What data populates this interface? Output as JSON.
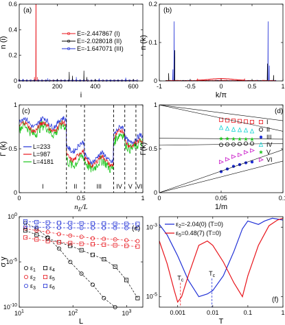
{
  "colors": {
    "red": "#e8141b",
    "black": "#000000",
    "blue": "#1f2fd6",
    "green": "#18c418",
    "cyan": "#12d2d2",
    "magenta": "#c817c8"
  },
  "chart_data": [
    {
      "panel": "(a)",
      "type": "line",
      "xlabel": "i",
      "ylabel": "n (i)",
      "xlim": [
        0,
        650
      ],
      "ylim": [
        0,
        0.6
      ],
      "xticks": [
        0,
        200,
        400,
        600
      ],
      "yticks": [
        0,
        0.2,
        0.4,
        0.6
      ],
      "legend": [
        "E=-2.447867 (I)",
        "E=-2.028018 (II)",
        "E=-1.647071 (III)"
      ],
      "series": [
        {
          "name": "E=-2.447867 (I)",
          "color": "red",
          "peaks": [
            [
              88,
              0.62
            ],
            [
              80,
              0.03
            ],
            [
              96,
              0.03
            ]
          ]
        },
        {
          "name": "E=-2.028018 (II)",
          "color": "black",
          "peaks": [
            [
              263,
              0.07
            ],
            [
              280,
              0.04
            ],
            [
              340,
              0.08
            ],
            [
              355,
              0.03
            ]
          ]
        },
        {
          "name": "E=-1.647071 (III)",
          "color": "blue",
          "peaks": [
            [
              20,
              0.015
            ],
            [
              150,
              0.02
            ],
            [
              300,
              0.03
            ],
            [
              420,
              0.02
            ],
            [
              560,
              0.025
            ]
          ]
        }
      ]
    },
    {
      "panel": "(b)",
      "type": "line",
      "xlabel": "k/π",
      "ylabel": "n (k)",
      "xlim": [
        -1,
        1
      ],
      "ylim": [
        0,
        0.2
      ],
      "xticks": [
        -1,
        -0.5,
        0,
        0.5,
        1
      ],
      "xticklabels": [
        "-1",
        "-0.5",
        "0",
        "0.5",
        "1"
      ],
      "yticks": [
        0,
        0.1,
        0.2
      ],
      "series": [
        {
          "color": "blue",
          "peaks": [
            [
              -0.76,
              0.155
            ],
            [
              0.76,
              0.155
            ],
            [
              -0.78,
              0.03
            ],
            [
              0.78,
              0.04
            ]
          ]
        },
        {
          "color": "black",
          "peaks": [
            [
              -0.75,
              0.08
            ],
            [
              0.75,
              0.045
            ],
            [
              -0.85,
              0.02
            ],
            [
              0.85,
              0.015
            ]
          ]
        },
        {
          "color": "red",
          "peaks": [
            [
              -0.38,
              0.006
            ],
            [
              0.38,
              0.006
            ],
            [
              0,
              0.004
            ]
          ]
        }
      ]
    },
    {
      "panel": "(c)",
      "type": "line",
      "xlabel": "n_E/L",
      "ylabel": "Γ (k)",
      "xlim": [
        0,
        1
      ],
      "ylim": [
        0,
        1
      ],
      "xticks": [
        0,
        0.5,
        1
      ],
      "yticks": [
        0,
        0.5,
        1
      ],
      "legend": [
        "L=233",
        "L=987",
        "L=4181"
      ],
      "dividers": [
        0.382,
        0.528,
        0.764,
        0.854,
        0.944
      ],
      "regions": [
        "I",
        "II",
        "III",
        "IV",
        "V",
        "VI"
      ],
      "series": [
        {
          "name": "L=233",
          "color": "blue",
          "segments": [
            [
              0,
              0.382,
              0.8
            ],
            [
              0.382,
              0.528,
              0.52
            ],
            [
              0.528,
              0.764,
              0.4
            ],
            [
              0.764,
              0.854,
              0.7
            ],
            [
              0.854,
              0.944,
              0.62
            ],
            [
              0.944,
              1,
              0.6
            ]
          ]
        },
        {
          "name": "L=987",
          "color": "red",
          "segments": [
            [
              0,
              0.382,
              0.75
            ],
            [
              0.382,
              0.528,
              0.42
            ],
            [
              0.528,
              0.764,
              0.36
            ],
            [
              0.764,
              0.854,
              0.66
            ],
            [
              0.854,
              0.944,
              0.58
            ],
            [
              0.944,
              1,
              0.55
            ]
          ]
        },
        {
          "name": "L=4181",
          "color": "green",
          "segments": [
            [
              0,
              0.382,
              0.72
            ],
            [
              0.382,
              0.528,
              0.36
            ],
            [
              0.528,
              0.764,
              0.32
            ],
            [
              0.764,
              0.854,
              0.62
            ],
            [
              0.854,
              0.944,
              0.55
            ],
            [
              0.944,
              1,
              0.52
            ]
          ]
        }
      ]
    },
    {
      "panel": "(d)",
      "type": "scatter",
      "xlabel": "1/m",
      "ylabel": "Γ(k)",
      "xlim": [
        0,
        0.1
      ],
      "ylim": [
        0,
        1
      ],
      "xticks": [
        0,
        0.05,
        0.1
      ],
      "yticks": [
        0,
        0.5,
        1
      ],
      "legend": [
        "I",
        "II",
        "III",
        "IV",
        "V",
        "VI"
      ],
      "series": [
        {
          "name": "I",
          "color": "red",
          "marker": "square",
          "line": [
            1.0,
            0.82
          ],
          "x": [
            0.05,
            0.055,
            0.06,
            0.065,
            0.07,
            0.075
          ],
          "y": [
            0.83,
            0.825,
            0.82,
            0.815,
            0.81,
            0.805
          ]
        },
        {
          "name": "II",
          "color": "black",
          "marker": "circle",
          "line": [
            0.54,
            0.56
          ],
          "x": [
            0.05,
            0.055,
            0.06,
            0.065,
            0.07,
            0.075
          ],
          "y": [
            0.545,
            0.55,
            0.55,
            0.555,
            0.56,
            0.56
          ]
        },
        {
          "name": "III",
          "color": "blue",
          "marker": "dot",
          "line": [
            0,
            0.36
          ],
          "x": [
            0.05,
            0.055,
            0.06,
            0.065,
            0.07,
            0.075
          ],
          "y": [
            0.24,
            0.27,
            0.3,
            0.32,
            0.34,
            0.35
          ]
        },
        {
          "name": "IV",
          "color": "cyan",
          "marker": "triangle",
          "line": [
            1.0,
            0.7
          ],
          "x": [
            0.05,
            0.055,
            0.06,
            0.065,
            0.07,
            0.075
          ],
          "y": [
            0.74,
            0.73,
            0.72,
            0.715,
            0.71,
            0.7
          ]
        },
        {
          "name": "V",
          "color": "green",
          "marker": "star",
          "line": [
            0.62,
            0.61
          ],
          "x": [
            0.05,
            0.055,
            0.06,
            0.065,
            0.07,
            0.075
          ],
          "y": [
            0.615,
            0.615,
            0.612,
            0.61,
            0.61,
            0.608
          ]
        },
        {
          "name": "VI",
          "color": "magenta",
          "marker": "triangle-right",
          "line": [
            0,
            0.49
          ],
          "x": [
            0.05,
            0.055,
            0.06,
            0.065,
            0.07,
            0.075
          ],
          "y": [
            0.35,
            0.38,
            0.41,
            0.43,
            0.46,
            0.48
          ]
        }
      ]
    },
    {
      "panel": "(e)",
      "type": "scatter",
      "xlabel": "L",
      "ylabel": "σγ",
      "xscale": "log",
      "yscale": "log",
      "xlim": [
        10,
        2000
      ],
      "ylim": [
        1e-10,
        1
      ],
      "xticks": [
        10,
        100,
        1000
      ],
      "xticklabels": [
        "10^1",
        "10^2",
        "10^3"
      ],
      "yticks": [
        1e-10,
        1e-05,
        1
      ],
      "yticklabels": [
        "10^-10",
        "10^-5",
        "10^0"
      ],
      "legend": [
        "ε1",
        "ε2",
        "ε3",
        "ε4",
        "ε5",
        "ε6"
      ],
      "series": [
        {
          "name": "ε1",
          "color": "black",
          "marker": "circle",
          "x": [
            13,
            21,
            34,
            55,
            89,
            144,
            233,
            377,
            610
          ],
          "y": [
            0.2,
            0.05,
            0.005,
            0.0003,
            1e-05,
            5e-07,
            3e-08,
            1e-09,
            1e-10
          ]
        },
        {
          "name": "ε2",
          "color": "red",
          "marker": "circle",
          "x": [
            13,
            21,
            34,
            55,
            89,
            144,
            233,
            377,
            610,
            987,
            1597
          ],
          "y": [
            0.05,
            0.03,
            0.02,
            0.012,
            0.008,
            0.006,
            0.004,
            0.0035,
            0.003,
            0.0025,
            0.002
          ]
        },
        {
          "name": "ε3",
          "color": "blue",
          "marker": "circle",
          "x": [
            13,
            21,
            34,
            55,
            89,
            144,
            233,
            377,
            610,
            987,
            1597
          ],
          "y": [
            0.08,
            0.07,
            0.065,
            0.06,
            0.06,
            0.058,
            0.057,
            0.056,
            0.056,
            0.055,
            0.055
          ]
        },
        {
          "name": "ε4",
          "color": "black",
          "marker": "square",
          "x": [
            13,
            21,
            34,
            55,
            89,
            144,
            233,
            377,
            610,
            987,
            1597
          ],
          "y": [
            0.03,
            0.01,
            0.004,
            0.0015,
            0.0006,
            0.0002,
            6e-05,
            2e-05,
            3e-06,
            1e-07,
            1e-09
          ]
        },
        {
          "name": "ε5",
          "color": "red",
          "marker": "square",
          "x": [
            13,
            21,
            34,
            55,
            89,
            144,
            233,
            377,
            610,
            987,
            1597
          ],
          "y": [
            0.005,
            0.003,
            0.002,
            0.0015,
            0.0012,
            0.001,
            0.0009,
            0.0008,
            0.0007,
            0.0006,
            0.0005
          ]
        },
        {
          "name": "ε6",
          "color": "blue",
          "marker": "square",
          "x": [
            13,
            21,
            34,
            55,
            89,
            144,
            233,
            377,
            610,
            987,
            1597
          ],
          "y": [
            0.3,
            0.25,
            0.22,
            0.2,
            0.19,
            0.18,
            0.17,
            0.17,
            0.16,
            0.16,
            0.16
          ]
        }
      ]
    },
    {
      "panel": "(f)",
      "type": "line",
      "xlabel": "T",
      "xscale": "log",
      "yscale": "log",
      "xlim": [
        0.0003,
        1
      ],
      "ylim": [
        5e-06,
        0.002
      ],
      "xticks": [
        0.001,
        0.01,
        0.1,
        1
      ],
      "xticklabels": [
        "0.001",
        "0.01",
        "0.1",
        "1"
      ],
      "yticks": [
        1e-05,
        0.001
      ],
      "yticklabels": [
        "10^-5",
        "10^-3"
      ],
      "legend": [
        "ε2=-2.04(0) (T=0)",
        "ε5=0.48(7) (T=0)"
      ],
      "annotations": [
        {
          "text": "Tc",
          "x": 0.0012,
          "color": "red"
        },
        {
          "text": "Tc",
          "x": 0.0095,
          "color": "blue"
        }
      ],
      "series": [
        {
          "name": "ε2=-2.04(0) (T=0)",
          "color": "blue",
          "x": [
            0.0003,
            0.0005,
            0.001,
            0.002,
            0.004,
            0.007,
            0.01,
            0.02,
            0.04,
            0.07,
            0.1,
            0.2,
            0.3,
            0.5,
            1
          ],
          "y": [
            0.0012,
            0.0006,
            0.00015,
            3e-05,
            1e-05,
            1.2e-05,
            1.5e-05,
            4e-05,
            0.0002,
            0.0009,
            0.0015,
            0.0012,
            0.0015,
            0.0018,
            0.0016
          ]
        },
        {
          "name": "ε5=0.48(7) (T=0)",
          "color": "red",
          "x": [
            0.0003,
            0.0005,
            0.0008,
            0.001,
            0.0013,
            0.002,
            0.004,
            0.007,
            0.01,
            0.02,
            0.04,
            0.07,
            0.1,
            0.2,
            0.4,
            0.7,
            1
          ],
          "y": [
            0.0004,
            9e-05,
            1.5e-05,
            7e-06,
            1e-05,
            4e-05,
            0.0003,
            0.0004,
            0.0003,
            0.0001,
            2.5e-05,
            1e-05,
            4e-05,
            0.0003,
            0.0011,
            0.0016,
            0.0018
          ]
        }
      ]
    }
  ]
}
